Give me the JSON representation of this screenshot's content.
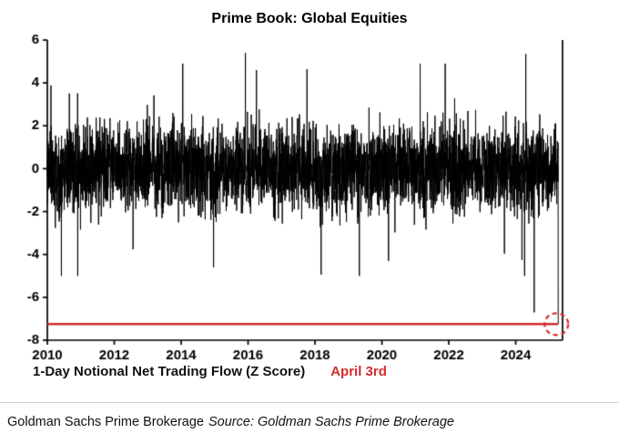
{
  "chart_data": {
    "type": "line",
    "title": "Prime Book: Global Equities",
    "caption": "1-Day Notional Net Trading Flow (Z Score)",
    "annotation": "April 3rd",
    "x_ticks": [
      2010,
      2012,
      2014,
      2016,
      2018,
      2020,
      2022,
      2024
    ],
    "y_ticks": [
      6,
      4,
      2,
      0,
      -2,
      -4,
      -6,
      -8
    ],
    "xlim": [
      2010,
      2025.4
    ],
    "ylim": [
      -8,
      6
    ],
    "grid": false,
    "legend": "none",
    "series_color": "#000000",
    "highlight_color": "#d22b2b",
    "red_line_value": -7.25,
    "latest_point": {
      "date_label": "April 3rd",
      "x": 2025.27,
      "value": -7.25
    },
    "notable_points": [
      {
        "x": 2014.97,
        "value": -4.6
      },
      {
        "x": 2015.92,
        "value": 5.4
      },
      {
        "x": 2016.25,
        "value": 4.6
      },
      {
        "x": 2020.2,
        "value": -4.3
      },
      {
        "x": 2024.3,
        "value": 5.35
      },
      {
        "x": 2024.55,
        "value": -6.7
      },
      {
        "x": 2025.27,
        "value": -7.25
      }
    ],
    "synthetic_series": {
      "seed": 11,
      "points_per_year": 252,
      "typical_sd": 1.0,
      "tail_prob": 0.012,
      "tail_scale_min": 2.2,
      "tail_scale_range": 1.6,
      "clamp_min": -5.0,
      "clamp_max": 4.9
    }
  },
  "footer": {
    "attribution": "Goldman Sachs Prime Brokerage",
    "source": "Source: Goldman Sachs Prime Brokerage"
  }
}
